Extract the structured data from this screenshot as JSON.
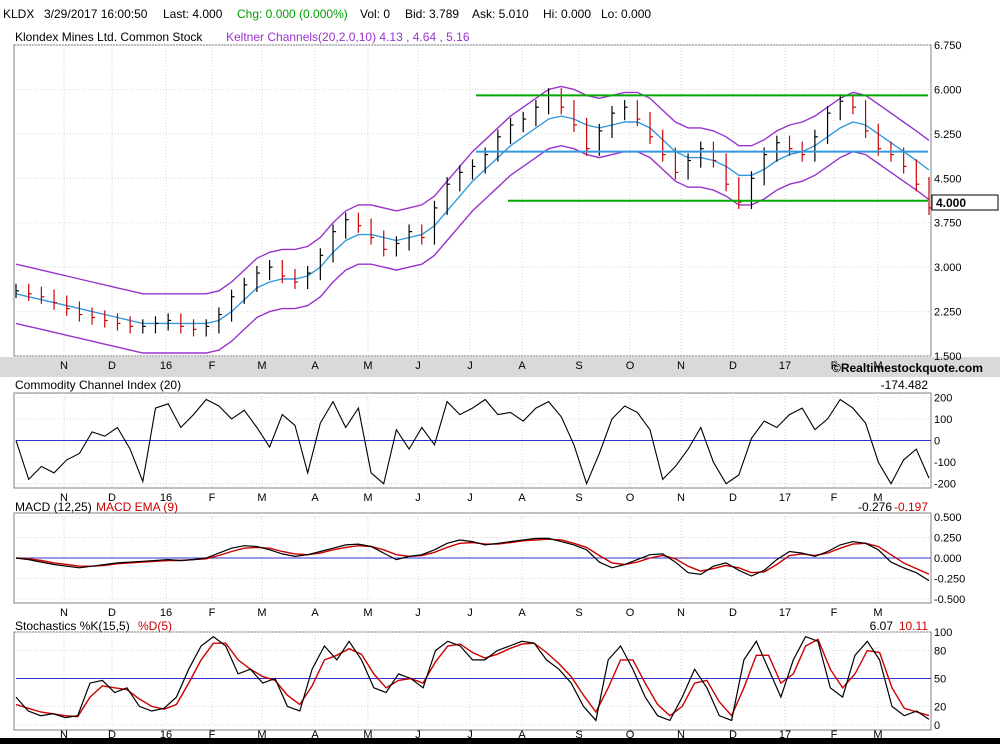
{
  "quote": {
    "symbol": "KLDX",
    "datetime": "3/29/2017 16:00:50",
    "last": "Last: 4.000",
    "chg": "Chg: 0.000 (0.000%)",
    "vol": "Vol: 0",
    "bid": "Bid: 3.789",
    "ask": "Ask: 5.010",
    "hi": "Hi: 0.000",
    "lo": "Lo: 0.000",
    "chg_color": "#00a000"
  },
  "price_panel": {
    "title": "Klondex Mines Ltd. Common Stock",
    "indicator": "Keltner Channels(20,2.0,10) 4.13 , 4.64 , 5.16",
    "indicator_color": "#9933cc",
    "last_label": "4.000",
    "copyright": "©Realtimestockquote.com"
  },
  "cci_panel": {
    "title": "Commodity Channel Index (20)",
    "value": "-174.482"
  },
  "macd_panel": {
    "title": "MACD (12,25)",
    "signal_title": "MACD EMA (9)",
    "value1": "-0.276",
    "value2": "-0.197",
    "signal_color": "#cc0000"
  },
  "stoch_panel": {
    "title": "Stochastics %K(15,5)",
    "d_title": "%D(5)",
    "value1": "6.07",
    "value2": "10.11",
    "d_color": "#cc0000"
  },
  "chart_data": [
    {
      "type": "ohlc",
      "title": "Klondex Mines Ltd. Common Stock",
      "x_labels": [
        "N",
        "D",
        "16",
        "F",
        "M",
        "A",
        "M",
        "J",
        "J",
        "A",
        "S",
        "O",
        "N",
        "D",
        "17",
        "F",
        "M"
      ],
      "y_ticks": [
        "6.750",
        "6.000",
        "5.250",
        "4.500",
        "3.750",
        "3.000",
        "2.250",
        "1.500"
      ],
      "ylim": [
        1.5,
        6.75
      ],
      "approx_close": [
        2.6,
        2.55,
        2.5,
        2.4,
        2.3,
        2.2,
        2.15,
        2.1,
        2.05,
        2.0,
        2.0,
        2.05,
        2.1,
        2.0,
        1.95,
        2.0,
        2.2,
        2.5,
        2.7,
        2.9,
        3.0,
        2.85,
        2.75,
        2.9,
        3.2,
        3.6,
        3.8,
        3.7,
        3.5,
        3.3,
        3.4,
        3.6,
        3.5,
        4.0,
        4.4,
        4.6,
        4.7,
        4.9,
        5.2,
        5.4,
        5.5,
        5.7,
        5.9,
        5.7,
        5.4,
        5.0,
        5.3,
        5.6,
        5.7,
        5.5,
        5.2,
        4.9,
        4.6,
        4.8,
        5.0,
        4.8,
        4.4,
        4.1,
        4.5,
        4.9,
        5.1,
        5.0,
        4.9,
        5.2,
        5.6,
        5.8,
        5.7,
        5.3,
        5.0,
        4.9,
        4.7,
        4.4,
        4.0
      ],
      "keltner_mid": [
        2.55,
        2.5,
        2.45,
        2.4,
        2.35,
        2.3,
        2.25,
        2.2,
        2.15,
        2.1,
        2.05,
        2.05,
        2.05,
        2.05,
        2.05,
        2.05,
        2.1,
        2.25,
        2.45,
        2.65,
        2.75,
        2.8,
        2.8,
        2.85,
        3.0,
        3.25,
        3.45,
        3.55,
        3.55,
        3.5,
        3.45,
        3.5,
        3.55,
        3.7,
        3.95,
        4.2,
        4.45,
        4.65,
        4.85,
        5.05,
        5.2,
        5.35,
        5.5,
        5.55,
        5.5,
        5.4,
        5.35,
        5.4,
        5.45,
        5.45,
        5.35,
        5.15,
        4.95,
        4.85,
        4.85,
        4.8,
        4.7,
        4.55,
        4.55,
        4.65,
        4.8,
        4.9,
        4.95,
        5.05,
        5.2,
        5.35,
        5.45,
        5.4,
        5.25,
        5.1,
        4.95,
        4.8,
        4.64
      ],
      "horizontal_lines": [
        {
          "value": 5.9,
          "color": "#00aa00"
        },
        {
          "value": 4.95,
          "color": "#3399dd"
        },
        {
          "value": 4.12,
          "color": "#00aa00"
        }
      ]
    },
    {
      "type": "line",
      "title": "Commodity Channel Index (20)",
      "y_ticks": [
        "200",
        "100",
        "0",
        "-100",
        "-200"
      ],
      "ylim": [
        -220,
        220
      ],
      "series": [
        {
          "name": "Commodity Channel Index (20)",
          "values": [
            0,
            -180,
            -120,
            -150,
            -90,
            -60,
            40,
            20,
            60,
            -40,
            -190,
            150,
            170,
            60,
            120,
            190,
            160,
            100,
            140,
            60,
            -30,
            120,
            70,
            -150,
            80,
            180,
            60,
            150,
            -150,
            -200,
            50,
            -40,
            60,
            -20,
            180,
            120,
            150,
            190,
            120,
            130,
            90,
            150,
            180,
            110,
            -20,
            -200,
            -60,
            100,
            160,
            130,
            50,
            -180,
            -120,
            -40,
            60,
            -100,
            -200,
            -160,
            10,
            90,
            60,
            120,
            150,
            50,
            100,
            190,
            150,
            80,
            -100,
            -200,
            -90,
            -40,
            -174
          ]
        }
      ]
    },
    {
      "type": "line",
      "title": "MACD (12,25)",
      "y_ticks": [
        "0.500",
        "0.250",
        "0.000",
        "-0.250",
        "-0.500"
      ],
      "ylim": [
        -0.55,
        0.55
      ],
      "series": [
        {
          "name": "MACD (12,25)",
          "values": [
            0.0,
            -0.02,
            -0.05,
            -0.08,
            -0.1,
            -0.12,
            -0.1,
            -0.08,
            -0.06,
            -0.05,
            -0.04,
            -0.03,
            -0.02,
            -0.03,
            -0.02,
            0.0,
            0.06,
            0.12,
            0.15,
            0.14,
            0.1,
            0.05,
            0.02,
            0.04,
            0.08,
            0.12,
            0.16,
            0.17,
            0.14,
            0.06,
            -0.02,
            0.02,
            0.04,
            0.1,
            0.18,
            0.22,
            0.2,
            0.16,
            0.18,
            0.2,
            0.22,
            0.24,
            0.24,
            0.2,
            0.16,
            0.1,
            -0.05,
            -0.12,
            -0.08,
            -0.02,
            0.04,
            0.05,
            -0.05,
            -0.18,
            -0.2,
            -0.1,
            -0.06,
            -0.15,
            -0.22,
            -0.15,
            -0.02,
            0.08,
            0.06,
            0.02,
            0.08,
            0.16,
            0.2,
            0.18,
            0.1,
            -0.05,
            -0.12,
            -0.18,
            -0.276
          ]
        },
        {
          "name": "MACD EMA (9)",
          "values": [
            0.0,
            -0.01,
            -0.03,
            -0.06,
            -0.08,
            -0.1,
            -0.1,
            -0.09,
            -0.07,
            -0.06,
            -0.05,
            -0.04,
            -0.03,
            -0.03,
            -0.02,
            -0.01,
            0.03,
            0.08,
            0.12,
            0.13,
            0.12,
            0.08,
            0.05,
            0.04,
            0.06,
            0.1,
            0.13,
            0.15,
            0.14,
            0.1,
            0.04,
            0.02,
            0.03,
            0.07,
            0.13,
            0.18,
            0.19,
            0.17,
            0.17,
            0.19,
            0.21,
            0.22,
            0.23,
            0.22,
            0.18,
            0.13,
            0.03,
            -0.06,
            -0.08,
            -0.05,
            0.0,
            0.03,
            -0.01,
            -0.1,
            -0.16,
            -0.13,
            -0.09,
            -0.12,
            -0.18,
            -0.17,
            -0.08,
            0.03,
            0.05,
            0.03,
            0.06,
            0.12,
            0.17,
            0.18,
            0.14,
            0.04,
            -0.06,
            -0.13,
            -0.197
          ]
        }
      ]
    },
    {
      "type": "line",
      "title": "Stochastics %K(15,5)",
      "y_ticks": [
        "100",
        "80",
        "50",
        "20",
        "0"
      ],
      "ylim": [
        0,
        100
      ],
      "series": [
        {
          "name": "%K(15,5)",
          "values": [
            30,
            15,
            10,
            12,
            8,
            10,
            45,
            48,
            35,
            40,
            20,
            15,
            18,
            30,
            60,
            85,
            95,
            85,
            55,
            60,
            45,
            50,
            20,
            15,
            60,
            85,
            70,
            90,
            70,
            40,
            35,
            55,
            50,
            40,
            80,
            90,
            85,
            70,
            70,
            80,
            85,
            90,
            88,
            70,
            60,
            45,
            20,
            5,
            70,
            85,
            60,
            30,
            10,
            5,
            30,
            60,
            40,
            10,
            5,
            70,
            90,
            60,
            30,
            70,
            95,
            90,
            40,
            30,
            75,
            90,
            70,
            20,
            10,
            15,
            6.07
          ]
        },
        {
          "name": "%D(5)",
          "values": [
            22,
            18,
            14,
            12,
            10,
            9,
            30,
            42,
            40,
            38,
            28,
            20,
            17,
            22,
            45,
            70,
            88,
            88,
            70,
            60,
            52,
            48,
            32,
            22,
            42,
            70,
            75,
            82,
            76,
            55,
            40,
            48,
            50,
            45,
            68,
            85,
            87,
            78,
            72,
            76,
            82,
            87,
            88,
            78,
            66,
            52,
            32,
            14,
            40,
            70,
            70,
            45,
            22,
            10,
            20,
            45,
            48,
            25,
            10,
            40,
            75,
            75,
            45,
            55,
            85,
            92,
            60,
            40,
            55,
            80,
            78,
            40,
            18,
            14,
            10.11
          ]
        }
      ]
    }
  ]
}
